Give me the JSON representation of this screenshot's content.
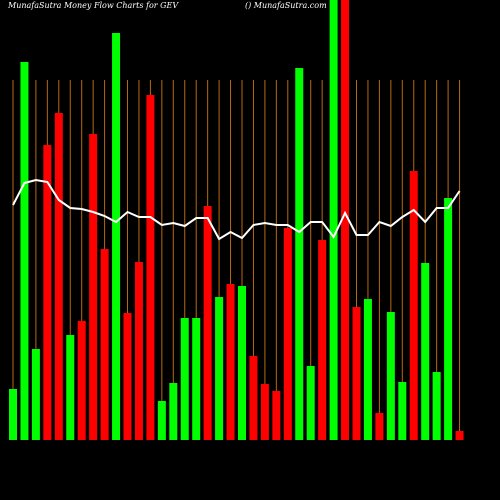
{
  "chart_data": {
    "type": "bar",
    "title": "MunafaSutra  Money Flow  Charts for GEV",
    "subtitle": "() MunafaSutra.com",
    "values": [
      51,
      378,
      91,
      295,
      327,
      105,
      119,
      306,
      191,
      407,
      127,
      178,
      345,
      39,
      57,
      122,
      122,
      234,
      143,
      156,
      154,
      84,
      56,
      49,
      212,
      372,
      74,
      200,
      460,
      460,
      133,
      141,
      27,
      128,
      58,
      269,
      177,
      68,
      242,
      9
    ],
    "colors": [
      "#00ff00",
      "#00ff00",
      "#00ff00",
      "#ff0000",
      "#ff0000",
      "#00ff00",
      "#ff0000",
      "#ff0000",
      "#ff0000",
      "#00ff00",
      "#ff0000",
      "#ff0000",
      "#ff0000",
      "#00ff00",
      "#00ff00",
      "#00ff00",
      "#00ff00",
      "#ff0000",
      "#00ff00",
      "#ff0000",
      "#00ff00",
      "#ff0000",
      "#ff0000",
      "#ff0000",
      "#ff0000",
      "#00ff00",
      "#00ff00",
      "#ff0000",
      "#00ff00",
      "#ff0000",
      "#ff0000",
      "#00ff00",
      "#ff0000",
      "#00ff00",
      "#00ff00",
      "#ff0000",
      "#00ff00",
      "#00ff00",
      "#00ff00",
      "#ff0000"
    ],
    "line_values": [
      235,
      257,
      260,
      258,
      240,
      232,
      231,
      228,
      224,
      218,
      228,
      223,
      223,
      215,
      217,
      214,
      222,
      222,
      201,
      208,
      202,
      215,
      217,
      215,
      215,
      208,
      218,
      218,
      203,
      227,
      205,
      205,
      218,
      214,
      223,
      230,
      218,
      232,
      232,
      249
    ],
    "line_color": "#ffffff",
    "grid_color": "#b8690f",
    "ylim": [
      0,
      440
    ]
  }
}
